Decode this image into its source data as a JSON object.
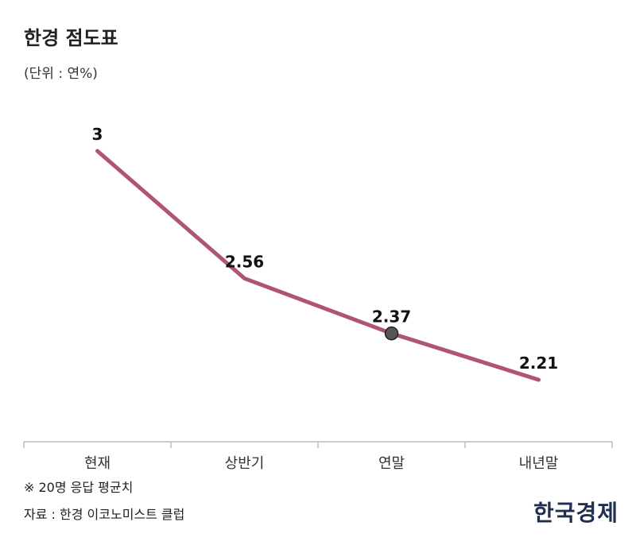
{
  "header": {
    "title": "한경 점도표",
    "unit": "(단위 : 연%)"
  },
  "footer": {
    "note": "※ 20명 응답 평균치",
    "source": "자료 : 한경 이코노미스트 클럽",
    "brand": "한국경제"
  },
  "colors": {
    "line": "#b05570",
    "marker": "#555555",
    "axis": "#bbbbbb"
  },
  "chart_data": {
    "type": "line",
    "categories": [
      "현재",
      "상반기",
      "연말",
      "내년말"
    ],
    "series": [
      {
        "values": [
          3,
          2.56,
          2.37,
          2.21
        ]
      }
    ],
    "data_labels": [
      "3",
      "2.56",
      "2.37",
      "2.21"
    ],
    "highlighted_point": 2,
    "ylim": [
      1.8,
      3.1
    ],
    "grid": false,
    "legend": "none"
  }
}
